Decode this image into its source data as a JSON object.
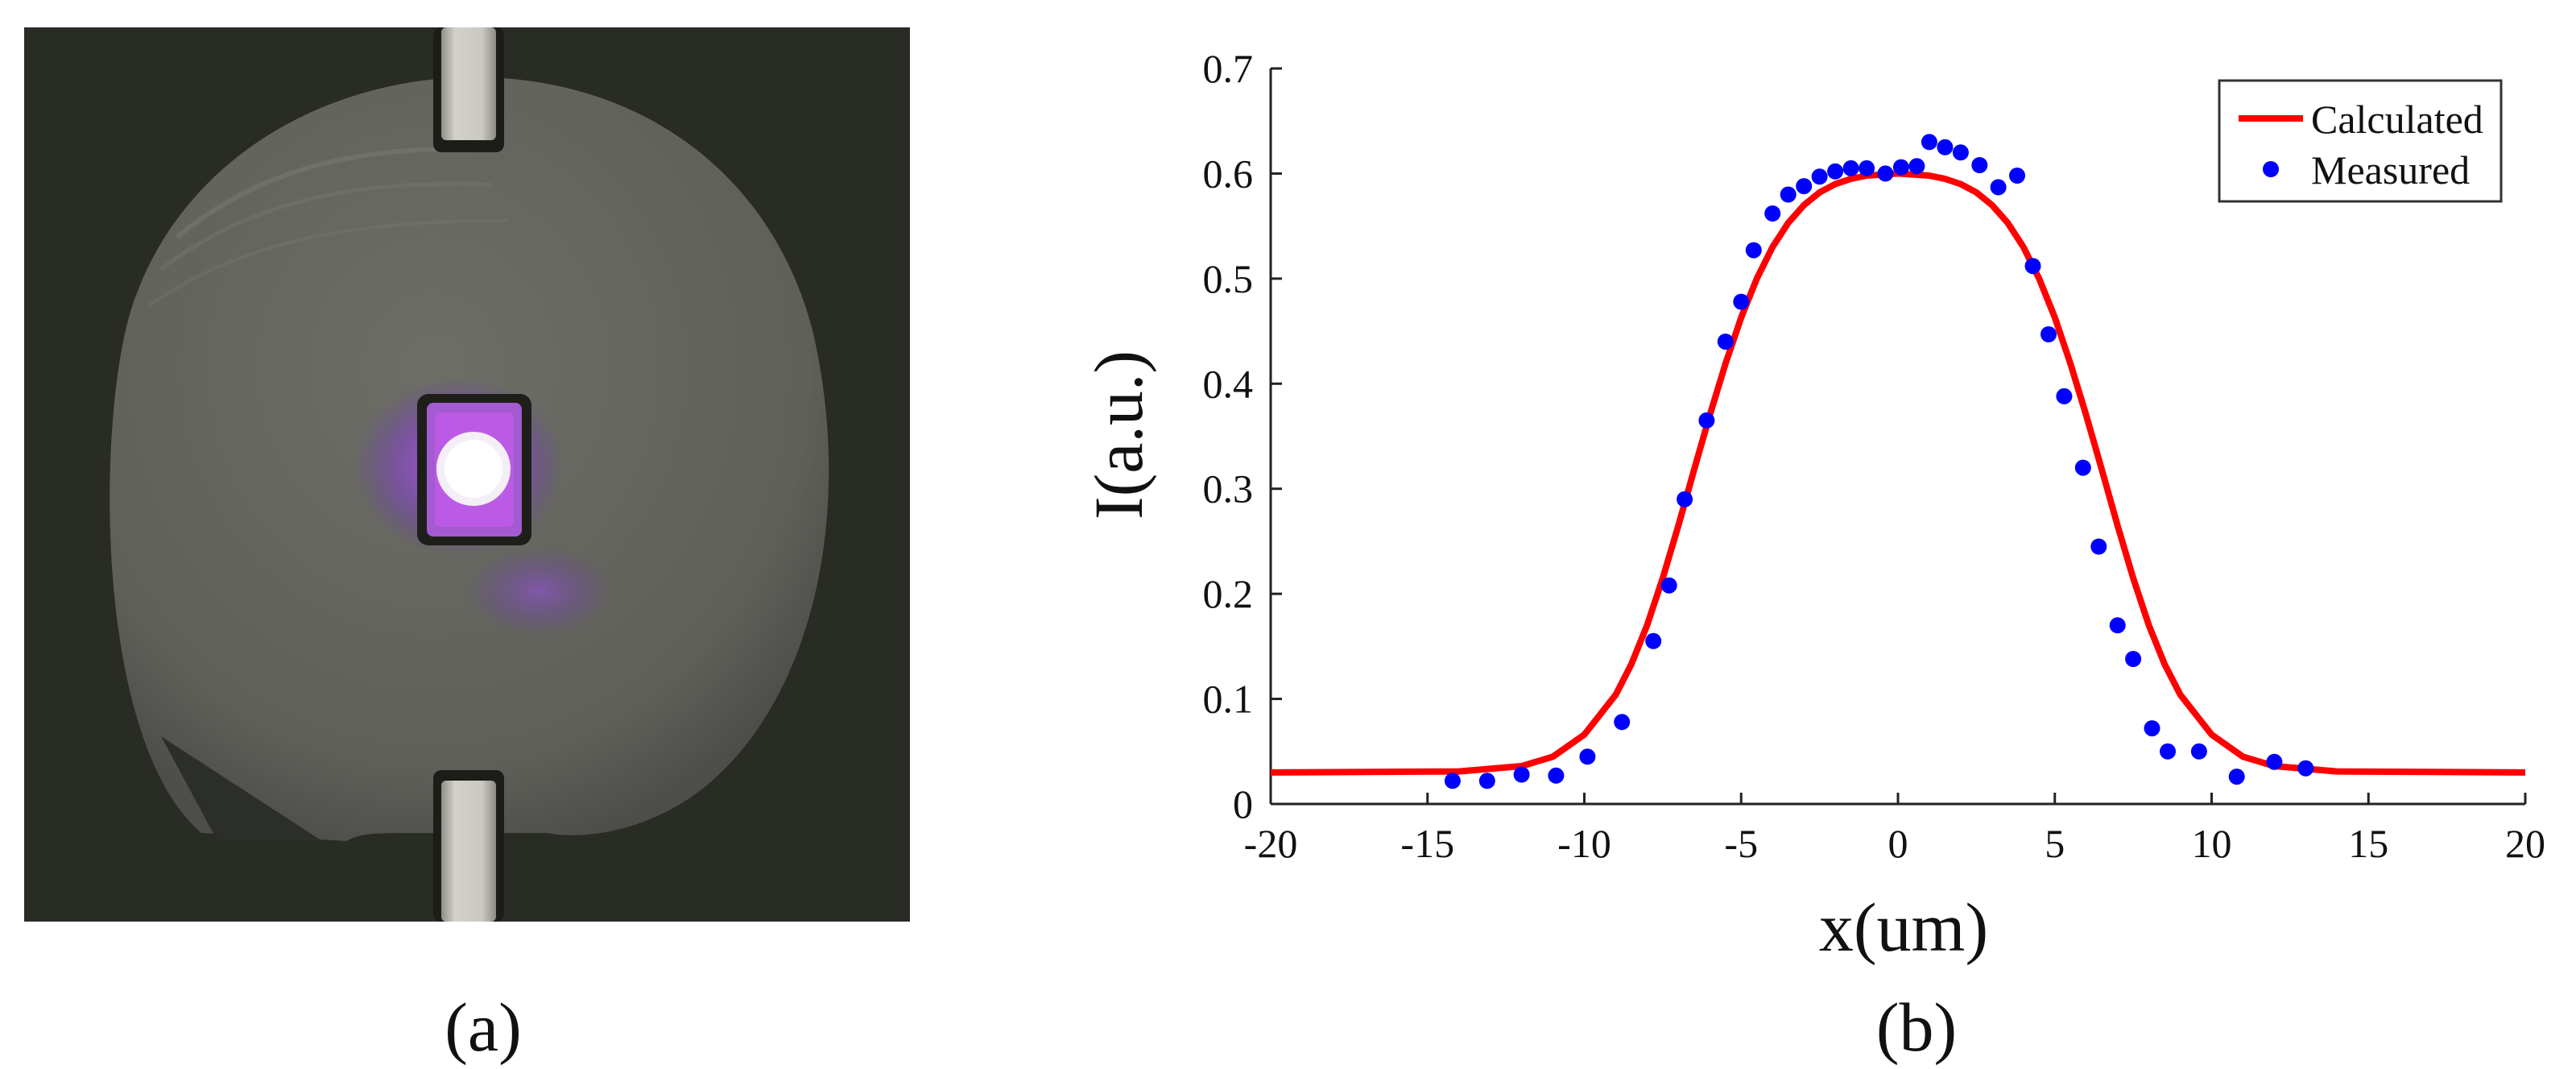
{
  "panels": {
    "a": {
      "caption": "(a)"
    },
    "b": {
      "caption": "(b)"
    }
  },
  "colors": {
    "calculated": "#ff0000",
    "measured": "#0000ff",
    "photo_background": "#2b2d28",
    "disk": "#65665f",
    "electrode": "#c8c8c0",
    "spot_glow": "#b040ff",
    "spot_core": "#ffffff"
  },
  "chart_data": {
    "type": "line",
    "xlabel": "x(um)",
    "ylabel": "I(a.u.)",
    "xlim": [
      -20,
      20
    ],
    "ylim": [
      0,
      0.7
    ],
    "xticks": [
      "-20",
      "-15",
      "-10",
      "-5",
      "0",
      "5",
      "10",
      "15",
      "20"
    ],
    "yticks": [
      "0",
      "0.1",
      "0.2",
      "0.3",
      "0.4",
      "0.5",
      "0.6",
      "0.7"
    ],
    "grid": false,
    "legend_position": "top-right",
    "series": [
      {
        "name": "Calculated",
        "style": "line",
        "x": [
          -20,
          -14,
          -12,
          -11,
          -10,
          -9,
          -8.5,
          -8,
          -7.5,
          -7,
          -6.5,
          -6,
          -5.5,
          -5,
          -4.5,
          -4,
          -3.5,
          -3,
          -2.5,
          -2,
          -1.5,
          -1,
          0,
          1,
          1.5,
          2,
          2.5,
          3,
          3.5,
          4,
          4.5,
          5,
          5.5,
          6,
          6.5,
          7,
          7.5,
          8,
          8.5,
          9,
          10,
          11,
          12,
          14,
          20
        ],
        "y": [
          0.03,
          0.031,
          0.036,
          0.045,
          0.066,
          0.104,
          0.133,
          0.17,
          0.215,
          0.265,
          0.318,
          0.37,
          0.419,
          0.463,
          0.5,
          0.53,
          0.553,
          0.57,
          0.582,
          0.59,
          0.595,
          0.598,
          0.6,
          0.598,
          0.595,
          0.59,
          0.582,
          0.57,
          0.553,
          0.53,
          0.5,
          0.463,
          0.419,
          0.37,
          0.318,
          0.265,
          0.215,
          0.17,
          0.133,
          0.104,
          0.066,
          0.045,
          0.036,
          0.031,
          0.03
        ]
      },
      {
        "name": "Measured",
        "style": "scatter",
        "x": [
          -14.2,
          -13.1,
          -12.0,
          -10.9,
          -9.9,
          -8.8,
          -7.8,
          -7.3,
          -6.8,
          -6.1,
          -5.5,
          -5.0,
          -4.6,
          -4.0,
          -3.5,
          -3.0,
          -2.5,
          -2.0,
          -1.5,
          -1.0,
          -0.4,
          0.1,
          0.6,
          1.0,
          1.5,
          2.0,
          2.6,
          3.2,
          3.8,
          4.3,
          4.8,
          5.3,
          5.9,
          6.4,
          7.0,
          7.5,
          8.1,
          8.6,
          9.6,
          10.8,
          12.0,
          13.0
        ],
        "y": [
          0.022,
          0.022,
          0.028,
          0.027,
          0.045,
          0.078,
          0.155,
          0.208,
          0.29,
          0.365,
          0.44,
          0.478,
          0.527,
          0.562,
          0.58,
          0.588,
          0.597,
          0.602,
          0.605,
          0.605,
          0.6,
          0.606,
          0.607,
          0.63,
          0.625,
          0.62,
          0.608,
          0.587,
          0.598,
          0.512,
          0.447,
          0.388,
          0.32,
          0.245,
          0.17,
          0.138,
          0.072,
          0.05,
          0.05,
          0.026,
          0.04,
          0.034
        ]
      }
    ]
  }
}
